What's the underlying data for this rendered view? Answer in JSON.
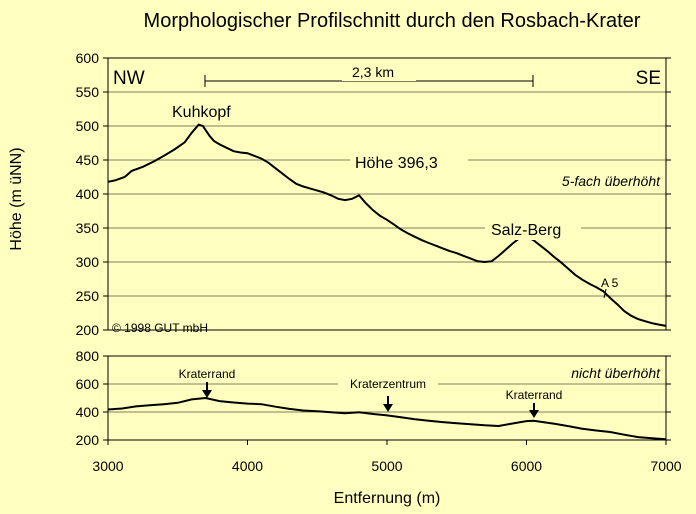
{
  "chart_data": [
    {
      "type": "line",
      "title": "Morphologischer Profilschnitt durch den Rosbach-Krater",
      "ylabel": "Höhe (m üNN)",
      "xlabel": "",
      "xlim": [
        3000,
        7000
      ],
      "ylim": [
        200,
        600
      ],
      "yticks": [
        200,
        250,
        300,
        350,
        400,
        450,
        500,
        550,
        600
      ],
      "ytick_labels": [
        "200",
        "250",
        "300",
        "350",
        "400",
        "450",
        "500",
        "550",
        "600"
      ],
      "grid": true,
      "series": [
        {
          "name": "",
          "x": [
            3000,
            3050,
            3120,
            3170,
            3250,
            3330,
            3400,
            3480,
            3550,
            3600,
            3650,
            3680,
            3700,
            3730,
            3760,
            3800,
            3850,
            3900,
            3950,
            4000,
            4050,
            4100,
            4150,
            4200,
            4250,
            4300,
            4350,
            4400,
            4450,
            4500,
            4550,
            4600,
            4650,
            4700,
            4750,
            4800,
            4850,
            4900,
            4950,
            5000,
            5050,
            5100,
            5150,
            5200,
            5250,
            5300,
            5350,
            5400,
            5450,
            5500,
            5550,
            5600,
            5650,
            5700,
            5750,
            5800,
            5850,
            5900,
            5950,
            6000,
            6050,
            6100,
            6150,
            6200,
            6250,
            6300,
            6350,
            6400,
            6450,
            6500,
            6550,
            6600,
            6650,
            6700,
            6750,
            6800,
            6850,
            6900,
            6950,
            7000
          ],
          "values": [
            418,
            420,
            425,
            434,
            440,
            448,
            456,
            466,
            476,
            490,
            502,
            500,
            494,
            485,
            478,
            473,
            468,
            463,
            461,
            460,
            456,
            452,
            446,
            438,
            430,
            422,
            415,
            411,
            408,
            405,
            402,
            398,
            393,
            391,
            393,
            398,
            386,
            376,
            368,
            362,
            355,
            348,
            342,
            337,
            332,
            328,
            324,
            320,
            316,
            313,
            309,
            305,
            301,
            300,
            301,
            309,
            318,
            327,
            335,
            338,
            332,
            324,
            316,
            307,
            299,
            290,
            281,
            274,
            268,
            263,
            257,
            247,
            238,
            228,
            221,
            216,
            213,
            210,
            208,
            206
          ]
        }
      ],
      "annotations": {
        "NW": "NW",
        "SE": "SE",
        "scale_bar": "2,3 km",
        "kuhkopf": "Kuhkopf",
        "hoehe": "Höhe 396,3",
        "salzberg": "Salz-Berg",
        "a5": "A 5",
        "exaggeration": "5-fach überhöht",
        "copyright": "© 1998 GUT mbH"
      }
    },
    {
      "type": "line",
      "xlabel": "Entfernung (m)",
      "xlim": [
        3000,
        7000
      ],
      "ylim": [
        200,
        800
      ],
      "xticks": [
        3000,
        4000,
        5000,
        6000,
        7000
      ],
      "xtick_labels": [
        "3000",
        "4000",
        "5000",
        "6000",
        "7000"
      ],
      "yticks": [
        200,
        400,
        600,
        800
      ],
      "ytick_labels": [
        "200",
        "400",
        "600",
        "800"
      ],
      "grid": true,
      "series": [
        {
          "name": "",
          "x": [
            3000,
            3100,
            3200,
            3300,
            3400,
            3500,
            3600,
            3700,
            3800,
            3900,
            4000,
            4100,
            4200,
            4300,
            4400,
            4500,
            4600,
            4700,
            4800,
            4900,
            5000,
            5100,
            5200,
            5300,
            5400,
            5500,
            5600,
            5700,
            5800,
            5900,
            6000,
            6050,
            6100,
            6200,
            6300,
            6400,
            6500,
            6600,
            6700,
            6800,
            6900,
            7000
          ],
          "values": [
            418,
            425,
            440,
            448,
            456,
            466,
            490,
            500,
            478,
            468,
            460,
            456,
            438,
            422,
            411,
            405,
            398,
            391,
            398,
            386,
            376,
            362,
            348,
            337,
            328,
            320,
            313,
            305,
            300,
            318,
            335,
            338,
            330,
            316,
            299,
            281,
            268,
            257,
            238,
            221,
            213,
            206
          ]
        }
      ],
      "annotations": {
        "exaggeration": "nicht überhöht",
        "kraterrand_left": "Kraterrand",
        "kraterzentrum": "Kraterzentrum",
        "kraterrand_right": "Kraterrand"
      }
    }
  ],
  "colors": {
    "background": "#FFFFC0",
    "line": "#000000",
    "grid": "#000000"
  }
}
